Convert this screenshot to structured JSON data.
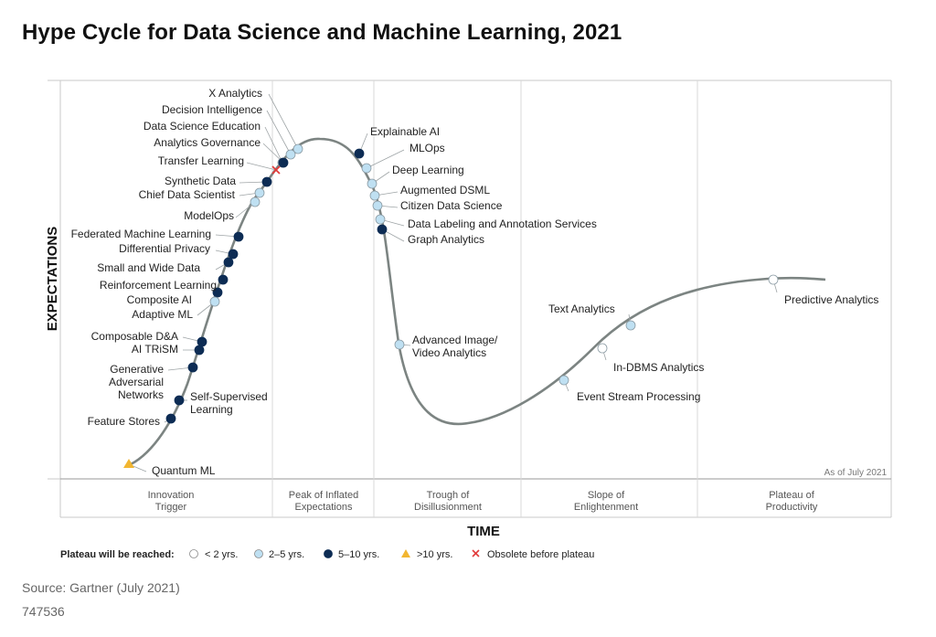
{
  "title": "Hype Cycle for Data Science and Machine Learning, 2021",
  "axes": {
    "y_label": "EXPECTATIONS",
    "x_label": "TIME"
  },
  "as_of": "As of July 2021",
  "phases": [
    {
      "line1": "Innovation",
      "line2": "Trigger"
    },
    {
      "line1": "Peak of Inflated",
      "line2": "Expectations"
    },
    {
      "line1": "Trough of",
      "line2": "Disillusionment"
    },
    {
      "line1": "Slope of",
      "line2": "Enlightenment"
    },
    {
      "line1": "Plateau of",
      "line2": "Productivity"
    }
  ],
  "legend": {
    "title": "Plateau will be reached:",
    "items": [
      {
        "key": "lt2",
        "label": "< 2 yrs."
      },
      {
        "key": "2to5",
        "label": "2–5 yrs."
      },
      {
        "key": "5to10",
        "label": "5–10 yrs."
      },
      {
        "key": "gt10",
        "label": ">10 yrs."
      },
      {
        "key": "obsolete",
        "label": "Obsolete before plateau"
      }
    ]
  },
  "marker_colors": {
    "lt2": "#ffffff",
    "2to5": "#bfe0f2",
    "5to10": "#0d2c54",
    "gt10": "#f2b631",
    "obsolete": "#e23b3b",
    "curve": "#7c8482"
  },
  "technologies": [
    {
      "name": "X Analytics",
      "plateau": "2to5"
    },
    {
      "name": "Decision Intelligence",
      "plateau": "2to5"
    },
    {
      "name": "Data Science Education",
      "plateau": "2to5"
    },
    {
      "name": "Analytics Governance",
      "plateau": "5to10"
    },
    {
      "name": "Transfer Learning",
      "plateau": "obsolete"
    },
    {
      "name": "Synthetic Data",
      "plateau": "5to10"
    },
    {
      "name": "Chief Data Scientist",
      "plateau": "2to5"
    },
    {
      "name": "ModelOps",
      "plateau": "2to5"
    },
    {
      "name": "Federated Machine Learning",
      "plateau": "5to10"
    },
    {
      "name": "Differential Privacy",
      "plateau": "5to10"
    },
    {
      "name": "Small and Wide Data",
      "plateau": "5to10"
    },
    {
      "name": "Reinforcement Learning",
      "plateau": "5to10"
    },
    {
      "name": "Composite AI",
      "plateau": "5to10"
    },
    {
      "name": "Adaptive ML",
      "plateau": "2to5"
    },
    {
      "name": "Composable D&A",
      "plateau": "5to10"
    },
    {
      "name": "AI TRiSM",
      "plateau": "5to10"
    },
    {
      "name": "Generative Adversarial Networks",
      "plateau": "5to10"
    },
    {
      "name": "Self-Supervised Learning",
      "plateau": "5to10"
    },
    {
      "name": "Feature Stores",
      "plateau": "5to10"
    },
    {
      "name": "Quantum ML",
      "plateau": "gt10"
    },
    {
      "name": "Explainable AI",
      "plateau": "5to10"
    },
    {
      "name": "MLOps",
      "plateau": "2to5"
    },
    {
      "name": "Deep Learning",
      "plateau": "2to5"
    },
    {
      "name": "Augmented DSML",
      "plateau": "2to5"
    },
    {
      "name": "Citizen Data Science",
      "plateau": "2to5"
    },
    {
      "name": "Data Labeling and Annotation Services",
      "plateau": "2to5"
    },
    {
      "name": "Graph Analytics",
      "plateau": "5to10"
    },
    {
      "name": "Advanced Image/ Video Analytics",
      "plateau": "2to5"
    },
    {
      "name": "Text Analytics",
      "plateau": "2to5"
    },
    {
      "name": "In-DBMS Analytics",
      "plateau": "lt2"
    },
    {
      "name": "Event Stream Processing",
      "plateau": "2to5"
    },
    {
      "name": "Predictive Analytics",
      "plateau": "lt2"
    }
  ],
  "source": "Source: Gartner (July 2021)",
  "doc_id": "747536"
}
